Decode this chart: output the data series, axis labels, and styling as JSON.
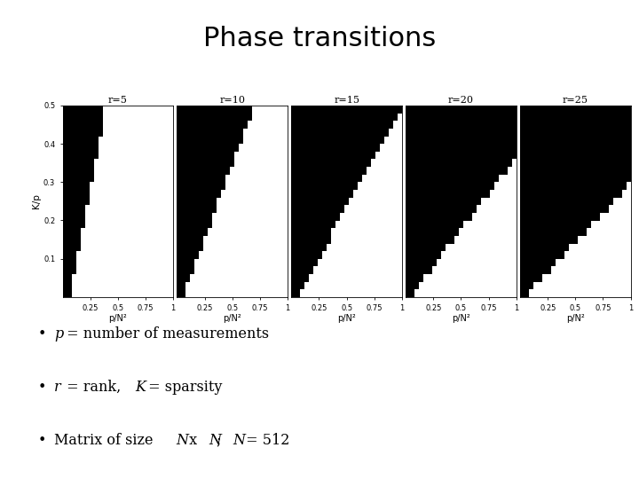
{
  "title": "Phase transitions",
  "title_fontsize": 22,
  "r_values": [
    5,
    10,
    15,
    20,
    25
  ],
  "xlabel": "p/N²",
  "ylabel": "K/p",
  "xlim": [
    0.0,
    1.0
  ],
  "ylim": [
    0.0,
    0.5
  ],
  "xticks": [
    0.25,
    0.5,
    0.75,
    1.0
  ],
  "xtick_labels": [
    "0.25",
    "0.5",
    "0.75",
    "1"
  ],
  "yticks": [
    0.1,
    0.2,
    0.3,
    0.4,
    0.5
  ],
  "ytick_labels": [
    "0.1",
    "0.2",
    "0.3",
    "0.4",
    "0.5"
  ],
  "background_color": "#ffffff",
  "grid_nx": 25,
  "grid_ny": 25
}
